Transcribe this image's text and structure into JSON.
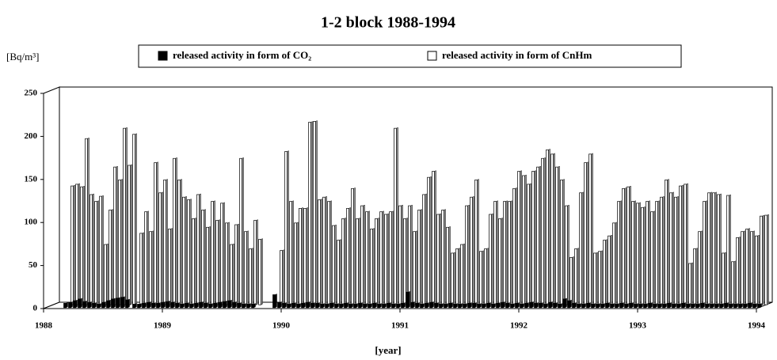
{
  "chart_data": {
    "type": "bar",
    "title": "1-2 block 1988-1994",
    "y_label": "[Bq/m³]",
    "x_label": "[year]",
    "xlim": [
      1988,
      1994
    ],
    "xticks": [
      1988,
      1989,
      1990,
      1991,
      1992,
      1993,
      1994
    ],
    "ylim": [
      0,
      250
    ],
    "yticks": [
      0,
      50,
      100,
      150,
      200,
      250
    ],
    "legend": "top",
    "x": [
      1988.15,
      1988.19,
      1988.23,
      1988.27,
      1988.31,
      1988.35,
      1988.39,
      1988.43,
      1988.47,
      1988.51,
      1988.55,
      1988.59,
      1988.63,
      1988.67,
      1988.73,
      1988.77,
      1988.81,
      1988.85,
      1988.89,
      1988.93,
      1988.97,
      1989.01,
      1989.05,
      1989.09,
      1989.13,
      1989.17,
      1989.21,
      1989.25,
      1989.29,
      1989.33,
      1989.37,
      1989.41,
      1989.45,
      1989.49,
      1989.53,
      1989.57,
      1989.61,
      1989.65,
      1989.69,
      1989.73,
      1989.91,
      1989.95,
      1989.99,
      1990.03,
      1990.07,
      1990.11,
      1990.15,
      1990.19,
      1990.23,
      1990.27,
      1990.31,
      1990.35,
      1990.39,
      1990.43,
      1990.47,
      1990.51,
      1990.55,
      1990.59,
      1990.63,
      1990.67,
      1990.71,
      1990.75,
      1990.79,
      1990.83,
      1990.87,
      1990.91,
      1990.95,
      1990.99,
      1991.03,
      1991.07,
      1991.11,
      1991.15,
      1991.19,
      1991.23,
      1991.27,
      1991.31,
      1991.35,
      1991.39,
      1991.43,
      1991.47,
      1991.51,
      1991.55,
      1991.59,
      1991.63,
      1991.67,
      1991.71,
      1991.75,
      1991.79,
      1991.83,
      1991.87,
      1991.91,
      1991.95,
      1991.99,
      1992.03,
      1992.07,
      1992.11,
      1992.15,
      1992.19,
      1992.23,
      1992.27,
      1992.31,
      1992.35,
      1992.39,
      1992.43,
      1992.47,
      1992.51,
      1992.55,
      1992.59,
      1992.63,
      1992.67,
      1992.71,
      1992.75,
      1992.79,
      1992.83,
      1992.87,
      1992.91,
      1992.95,
      1992.99,
      1993.03,
      1993.07,
      1993.11,
      1993.15,
      1993.19,
      1993.23,
      1993.27,
      1993.31,
      1993.35,
      1993.39,
      1993.43,
      1993.47,
      1993.51,
      1993.55,
      1993.59,
      1993.63,
      1993.67,
      1993.71,
      1993.75,
      1993.79,
      1993.83,
      1993.87,
      1993.91,
      1993.95,
      1993.99
    ],
    "series": [
      {
        "name": "released activity in form of CO₂",
        "color": "#000000",
        "values": [
          5,
          6,
          8,
          10,
          7,
          6,
          5,
          4,
          6,
          8,
          10,
          11,
          12,
          9,
          4,
          4,
          5,
          6,
          5,
          5,
          6,
          7,
          6,
          5,
          4,
          5,
          4,
          5,
          6,
          5,
          4,
          5,
          6,
          7,
          8,
          6,
          5,
          4,
          4,
          4,
          15,
          6,
          5,
          4,
          5,
          4,
          5,
          6,
          5,
          5,
          4,
          4,
          5,
          4,
          4,
          5,
          4,
          4,
          5,
          4,
          4,
          5,
          4,
          4,
          5,
          4,
          4,
          5,
          18,
          6,
          5,
          4,
          5,
          6,
          5,
          4,
          4,
          5,
          4,
          4,
          4,
          5,
          5,
          4,
          4,
          5,
          4,
          5,
          6,
          5,
          4,
          5,
          4,
          5,
          6,
          5,
          5,
          4,
          6,
          5,
          4,
          10,
          8,
          5,
          4,
          4,
          5,
          4,
          4,
          4,
          5,
          4,
          4,
          5,
          4,
          5,
          4,
          4,
          4,
          5,
          4,
          4,
          4,
          5,
          4,
          4,
          5,
          4,
          4,
          4,
          5,
          4,
          4,
          4,
          4,
          5,
          4,
          4,
          4,
          4,
          5,
          4,
          4
        ]
      },
      {
        "name": "released activity in form of CnHm",
        "color": "#ffffff",
        "values": [
          138,
          140,
          137,
          193,
          128,
          120,
          126,
          70,
          110,
          160,
          145,
          205,
          162,
          198,
          83,
          108,
          85,
          165,
          130,
          145,
          88,
          170,
          145,
          125,
          122,
          100,
          128,
          110,
          90,
          120,
          98,
          118,
          95,
          70,
          93,
          170,
          85,
          65,
          98,
          76,
          63,
          178,
          120,
          95,
          112,
          112,
          212,
          213,
          122,
          125,
          120,
          92,
          75,
          100,
          112,
          135,
          100,
          115,
          108,
          88,
          100,
          108,
          105,
          108,
          205,
          115,
          100,
          115,
          85,
          110,
          128,
          148,
          155,
          105,
          110,
          90,
          60,
          65,
          70,
          115,
          125,
          145,
          62,
          65,
          105,
          120,
          100,
          120,
          120,
          135,
          155,
          150,
          140,
          155,
          160,
          170,
          180,
          175,
          160,
          145,
          115,
          55,
          65,
          130,
          165,
          175,
          60,
          62,
          75,
          80,
          95,
          120,
          135,
          137,
          120,
          118,
          113,
          120,
          108,
          120,
          125,
          145,
          130,
          125,
          138,
          140,
          48,
          65,
          85,
          120,
          130,
          130,
          128,
          60,
          127,
          50,
          78,
          85,
          88,
          85,
          80,
          103,
          104
        ]
      }
    ]
  }
}
